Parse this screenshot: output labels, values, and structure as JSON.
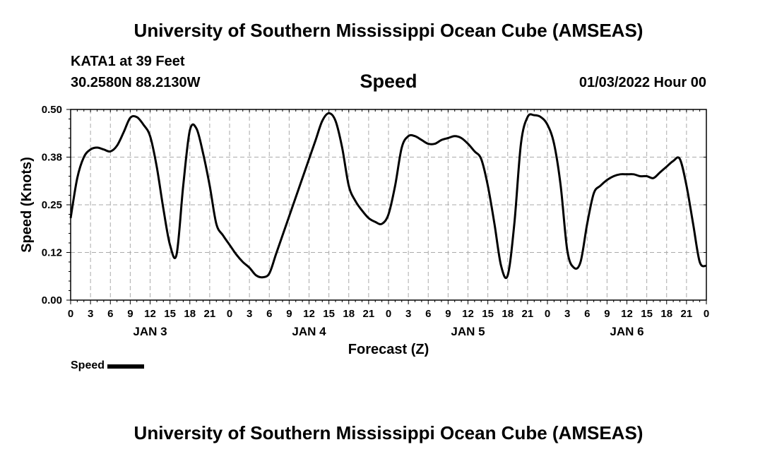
{
  "header": {
    "title": "University of Southern Mississippi Ocean Cube (AMSEAS)",
    "station": "KATA1 at 39 Feet",
    "coords": "30.2580N  88.2130W",
    "variable": "Speed",
    "datetime": "01/03/2022 Hour 00"
  },
  "footer": {
    "title": "University of Southern Mississippi Ocean Cube (AMSEAS)"
  },
  "legend": {
    "label": "Speed",
    "color": "#000000"
  },
  "chart_data": {
    "type": "line",
    "title": "Speed",
    "xlabel": "Forecast (Z)",
    "ylabel": "Speed (Knots)",
    "xlim": [
      0,
      96
    ],
    "ylim": [
      0,
      0.5
    ],
    "grid": true,
    "x_tick_labels": [
      "0",
      "3",
      "6",
      "9",
      "12",
      "15",
      "18",
      "21",
      "0",
      "3",
      "6",
      "9",
      "12",
      "15",
      "18",
      "21",
      "0",
      "3",
      "6",
      "9",
      "12",
      "15",
      "18",
      "21",
      "0",
      "3",
      "6",
      "9",
      "12",
      "15",
      "18",
      "21",
      "0"
    ],
    "y_tick_labels": [
      "0.00",
      "0.12",
      "0.25",
      "0.38",
      "0.50"
    ],
    "y_tick_values": [
      0,
      0.125,
      0.25,
      0.375,
      0.5
    ],
    "day_labels": [
      {
        "label": "JAN 3",
        "hour": 12
      },
      {
        "label": "JAN 4",
        "hour": 36
      },
      {
        "label": "JAN 5",
        "hour": 60
      },
      {
        "label": "JAN 6",
        "hour": 84
      }
    ],
    "series": [
      {
        "name": "Speed",
        "color": "#000000",
        "x": [
          0,
          1,
          2,
          3,
          4,
          5,
          6,
          7,
          8,
          9,
          10,
          11,
          12,
          13,
          14,
          15,
          16,
          17,
          18,
          19,
          20,
          21,
          22,
          23,
          24,
          25,
          26,
          27,
          28,
          29,
          30,
          31,
          32,
          33,
          34,
          35,
          36,
          37,
          38,
          39,
          40,
          41,
          42,
          43,
          44,
          45,
          46,
          47,
          48,
          49,
          50,
          51,
          52,
          53,
          54,
          55,
          56,
          57,
          58,
          59,
          60,
          61,
          62,
          63,
          64,
          65,
          66,
          67,
          68,
          69,
          70,
          71,
          72,
          73,
          74,
          75,
          76,
          77,
          78,
          79,
          80,
          81,
          82,
          83,
          84,
          85,
          86,
          87,
          88,
          89,
          90,
          91,
          92,
          93,
          94,
          95,
          96
        ],
        "values": [
          0.215,
          0.32,
          0.375,
          0.395,
          0.4,
          0.395,
          0.39,
          0.405,
          0.44,
          0.478,
          0.48,
          0.46,
          0.43,
          0.35,
          0.24,
          0.145,
          0.12,
          0.3,
          0.445,
          0.45,
          0.385,
          0.3,
          0.2,
          0.17,
          0.145,
          0.12,
          0.1,
          0.085,
          0.065,
          0.06,
          0.07,
          0.12,
          0.17,
          0.22,
          0.27,
          0.32,
          0.37,
          0.42,
          0.47,
          0.49,
          0.47,
          0.4,
          0.3,
          0.26,
          0.235,
          0.215,
          0.205,
          0.2,
          0.225,
          0.3,
          0.4,
          0.43,
          0.43,
          0.42,
          0.41,
          0.41,
          0.42,
          0.425,
          0.43,
          0.425,
          0.41,
          0.39,
          0.37,
          0.3,
          0.2,
          0.09,
          0.065,
          0.2,
          0.41,
          0.48,
          0.485,
          0.48,
          0.46,
          0.41,
          0.3,
          0.13,
          0.085,
          0.1,
          0.2,
          0.28,
          0.3,
          0.315,
          0.325,
          0.33,
          0.33,
          0.33,
          0.325,
          0.325,
          0.32,
          0.335,
          0.35,
          0.365,
          0.37,
          0.3,
          0.2,
          0.1,
          0.09
        ]
      }
    ]
  }
}
